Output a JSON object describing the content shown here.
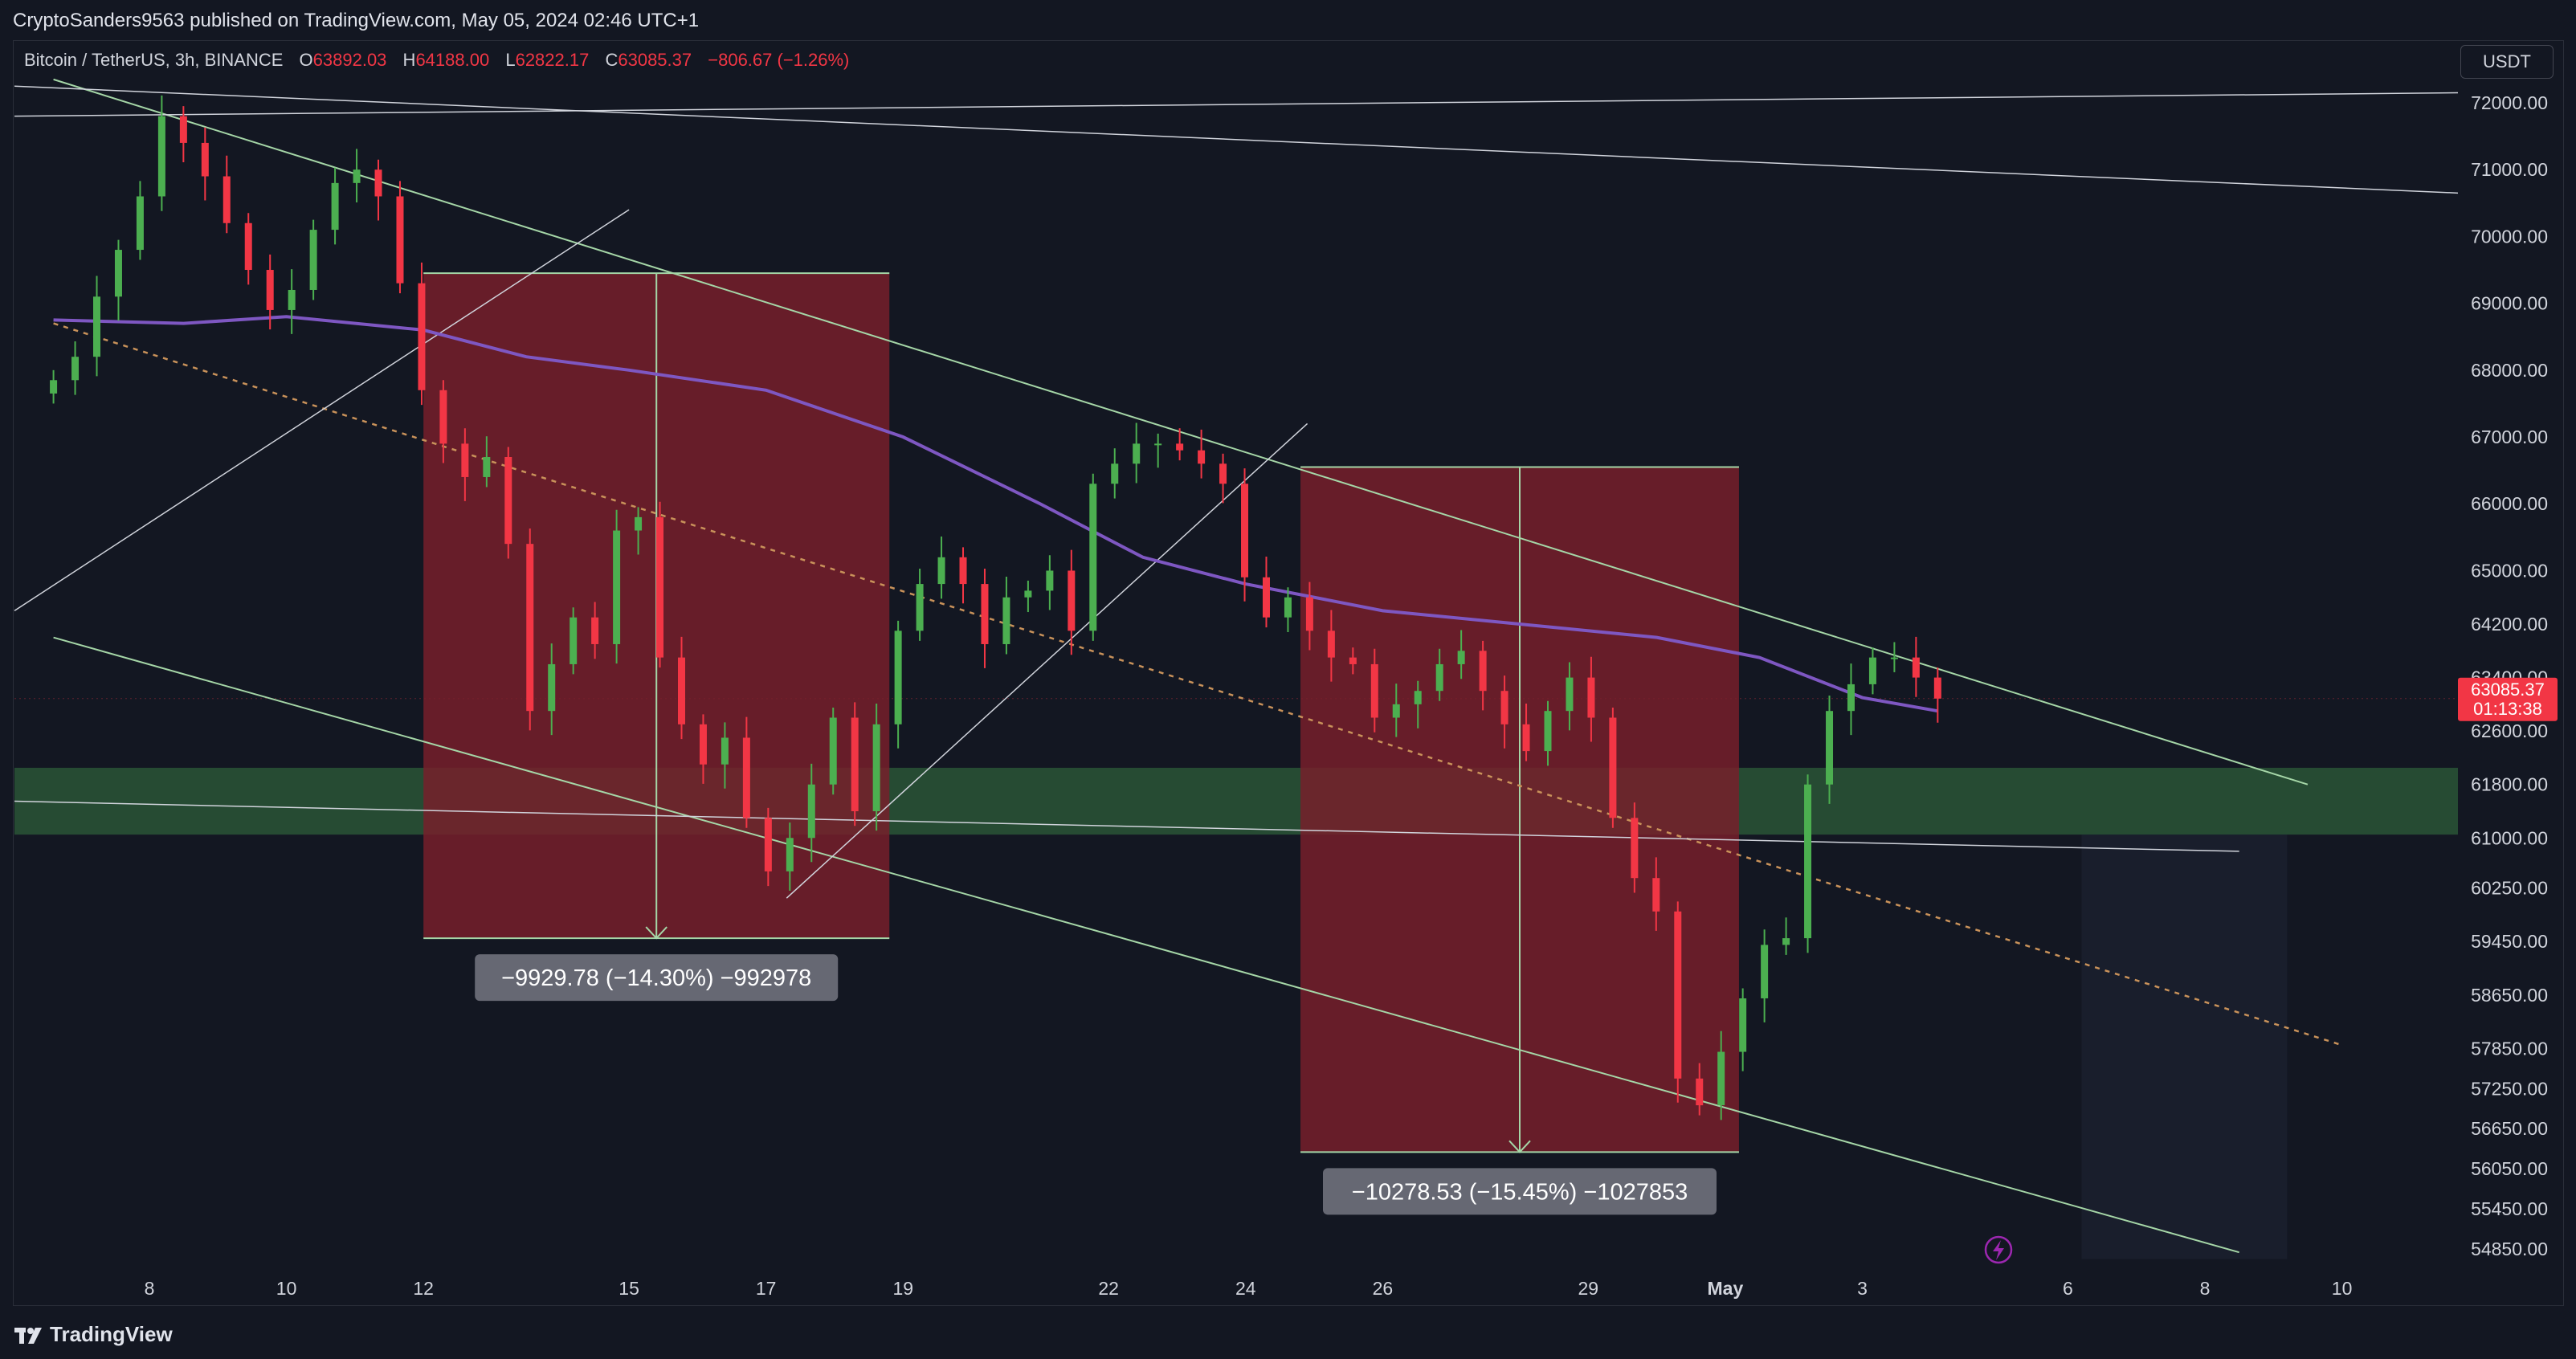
{
  "header": {
    "publish_line": "CryptoSanders9563 published on TradingView.com, May 05, 2024 02:46 UTC+1"
  },
  "legend": {
    "symbol": "Bitcoin / TetherUS, 3h, BINANCE",
    "open_label": "O",
    "open": "63892.03",
    "high_label": "H",
    "high": "64188.00",
    "low_label": "L",
    "low": "62822.17",
    "close_label": "C",
    "close": "63085.37",
    "change": "−806.67 (−1.26%)"
  },
  "currency_button": "USDT",
  "footer": {
    "brand": "TradingView"
  },
  "colors": {
    "background": "#131722",
    "bull": "#26a69a",
    "bull_candle": "#4caf50",
    "bear": "#f23645",
    "ma_line": "#7e57c2",
    "channel_line": "#a5d6a7",
    "zone": "#2e5e3a",
    "drop_box": "#7a1f2b"
  },
  "chart_data": {
    "type": "candlestick",
    "symbol": "Bitcoin / TetherUS",
    "timeframe": "3h",
    "exchange": "BINANCE",
    "y_axis": {
      "ticks": [
        72000,
        71000,
        70000,
        69000,
        68000,
        67000,
        66000,
        65000,
        64200,
        63400,
        62600,
        61800,
        61000,
        60250,
        59450,
        58650,
        57850,
        57250,
        56650,
        56050,
        55450,
        54850
      ],
      "tick_labels": [
        "72000.00",
        "71000.00",
        "70000.00",
        "69000.00",
        "68000.00",
        "67000.00",
        "66000.00",
        "65000.00",
        "64200.00",
        "63400.00",
        "62600.00",
        "61800.00",
        "61000.00",
        "60250.00",
        "59450.00",
        "58650.00",
        "57850.00",
        "57250.00",
        "56650.00",
        "56050.00",
        "55450.00",
        "54850.00"
      ],
      "ylim": [
        54500,
        72400
      ]
    },
    "x_axis": {
      "ticks": [
        "8",
        "10",
        "12",
        "15",
        "17",
        "19",
        "22",
        "24",
        "26",
        "29",
        "May",
        "3",
        "6",
        "8",
        "10"
      ],
      "tick_days": [
        8,
        10,
        12,
        15,
        17,
        19,
        22,
        24,
        26,
        29,
        31,
        33,
        36,
        38,
        40
      ],
      "unit": "day (April 2024 continuing into May)"
    },
    "current_price": {
      "value": "63085.37",
      "countdown": "01:13:38"
    },
    "close_series": [
      67850,
      68200,
      69100,
      69800,
      70600,
      71800,
      71400,
      70900,
      70200,
      69500,
      68900,
      69200,
      70100,
      70800,
      71000,
      70600,
      69300,
      67700,
      66900,
      66400,
      66700,
      65400,
      62900,
      63600,
      64300,
      63900,
      65600,
      65800,
      63700,
      62700,
      62100,
      62500,
      61300,
      60500,
      61000,
      61800,
      62800,
      61400,
      62700,
      64100,
      64800,
      65200,
      64800,
      63900,
      64600,
      64700,
      65000,
      64100,
      66300,
      66600,
      66900,
      66900,
      66800,
      66600,
      66300,
      64900,
      64300,
      64600,
      64100,
      63700,
      63600,
      62800,
      63000,
      63200,
      63600,
      63800,
      63200,
      62700,
      62300,
      62900,
      63400,
      62800,
      61300,
      60400,
      59900,
      57400,
      57000,
      57800,
      58600,
      59400,
      59500,
      61800,
      62900,
      63300,
      63700,
      63700,
      63400,
      63085
    ],
    "moving_average": {
      "name": "",
      "points": [
        [
          6.6,
          68750
        ],
        [
          8.5,
          68700
        ],
        [
          10,
          68800
        ],
        [
          12,
          68600
        ],
        [
          13.5,
          68200
        ],
        [
          15,
          68000
        ],
        [
          17,
          67700
        ],
        [
          19,
          67000
        ],
        [
          21,
          66000
        ],
        [
          22.5,
          65200
        ],
        [
          24,
          64800
        ],
        [
          26,
          64400
        ],
        [
          28,
          64200
        ],
        [
          30,
          64000
        ],
        [
          31.5,
          63700
        ],
        [
          33,
          63100
        ],
        [
          34.1,
          62900
        ]
      ]
    },
    "drawings": {
      "support_zone": {
        "from": 61050,
        "to": 62050
      },
      "channel_upper": [
        [
          6.6,
          72350
        ],
        [
          39.5,
          61800
        ]
      ],
      "channel_lower": [
        [
          6.6,
          64000
        ],
        [
          38.5,
          54800
        ]
      ],
      "channel_mid": [
        [
          6.6,
          68700
        ],
        [
          40,
          57900
        ]
      ],
      "measures": [
        {
          "label": "−9929.78 (−14.30%) −992978",
          "top": 69450,
          "bottom": 59500,
          "x_start_day": 12,
          "x_end_day": 18.8
        },
        {
          "label": "−10278.53 (−15.45%) −1027853",
          "top": 66550,
          "bottom": 56300,
          "x_start_day": 24.8,
          "x_end_day": 31.2
        }
      ]
    }
  }
}
